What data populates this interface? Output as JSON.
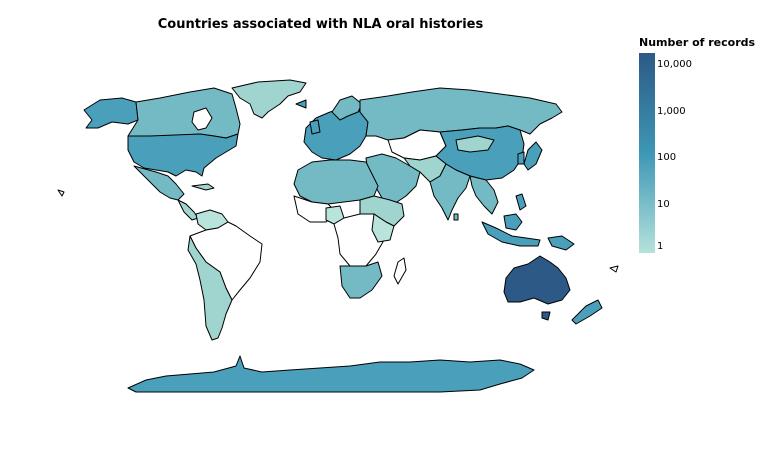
{
  "title": "Countries associated with NLA oral histories",
  "legend": {
    "title": "Number of records",
    "ticks": [
      "10,000",
      "1,000",
      "100",
      "10",
      "1"
    ],
    "scale": "log",
    "colors": {
      "high": "#2d5986",
      "mid": "#3d97b5",
      "low": "#b5e2dc"
    }
  },
  "colors": {
    "no_data": "#ffffff",
    "border": "#000000",
    "dark": "#2d5986",
    "mid": "#4a9fbb",
    "midlight": "#74bac4",
    "light": "#9fd4cf",
    "lightest": "#b8e4dc"
  },
  "regions": [
    {
      "name": "Australia",
      "level": "dark"
    },
    {
      "name": "Antarctica",
      "level": "mid"
    },
    {
      "name": "United States",
      "level": "mid"
    },
    {
      "name": "Canada",
      "level": "midlight"
    },
    {
      "name": "Alaska",
      "level": "mid"
    },
    {
      "name": "Greenland",
      "level": "light"
    },
    {
      "name": "Russia",
      "level": "midlight"
    },
    {
      "name": "China",
      "level": "mid"
    },
    {
      "name": "India",
      "level": "midlight"
    },
    {
      "name": "Mexico",
      "level": "midlight"
    },
    {
      "name": "Brazil",
      "level": "none"
    },
    {
      "name": "Argentina",
      "level": "light"
    },
    {
      "name": "South Africa",
      "level": "midlight"
    },
    {
      "name": "Indonesia",
      "level": "mid"
    },
    {
      "name": "Japan",
      "level": "mid"
    },
    {
      "name": "New Zealand",
      "level": "mid"
    },
    {
      "name": "Papua New Guinea",
      "level": "mid"
    },
    {
      "name": "Europe",
      "level": "mid"
    },
    {
      "name": "North Africa",
      "level": "midlight"
    },
    {
      "name": "Central Africa",
      "level": "none"
    },
    {
      "name": "Middle East",
      "level": "midlight"
    },
    {
      "name": "Southeast Asia",
      "level": "midlight"
    }
  ]
}
